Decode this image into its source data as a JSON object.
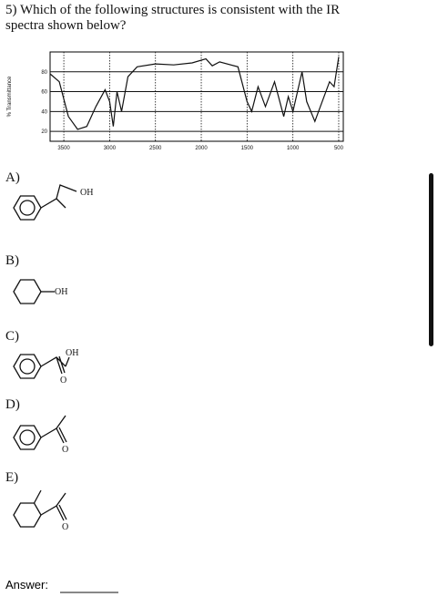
{
  "question": "5) Which of the following structures is consistent with the IR spectra shown below?",
  "spectrum": {
    "type": "line",
    "ylabel": "% Transmittance",
    "xlim": [
      3650,
      450
    ],
    "ylim": [
      10,
      100
    ],
    "xticks": [
      3500,
      3000,
      2500,
      2000,
      1500,
      1000,
      500
    ],
    "yticks": [
      20,
      40,
      60,
      80
    ],
    "x": [
      3650,
      3550,
      3450,
      3350,
      3250,
      3150,
      3050,
      3000,
      2960,
      2920,
      2870,
      2800,
      2700,
      2500,
      2300,
      2100,
      1950,
      1880,
      1800,
      1600,
      1500,
      1450,
      1380,
      1300,
      1200,
      1100,
      1050,
      1000,
      900,
      850,
      760,
      700,
      600,
      550,
      500
    ],
    "values": [
      78,
      70,
      35,
      22,
      25,
      45,
      62,
      50,
      25,
      60,
      40,
      75,
      85,
      88,
      87,
      89,
      93,
      86,
      90,
      85,
      50,
      40,
      65,
      45,
      70,
      35,
      55,
      40,
      80,
      50,
      30,
      45,
      70,
      65,
      95
    ]
  },
  "options": [
    {
      "label": "A)",
      "atoms": [
        "OH"
      ]
    },
    {
      "label": "B)",
      "atoms": [
        "OH"
      ]
    },
    {
      "label": "C)",
      "atoms": [
        "OH",
        "O"
      ]
    },
    {
      "label": "D)",
      "atoms": [
        "O"
      ]
    },
    {
      "label": "E)",
      "atoms": [
        "O"
      ]
    }
  ],
  "answer_label": "Answer:"
}
